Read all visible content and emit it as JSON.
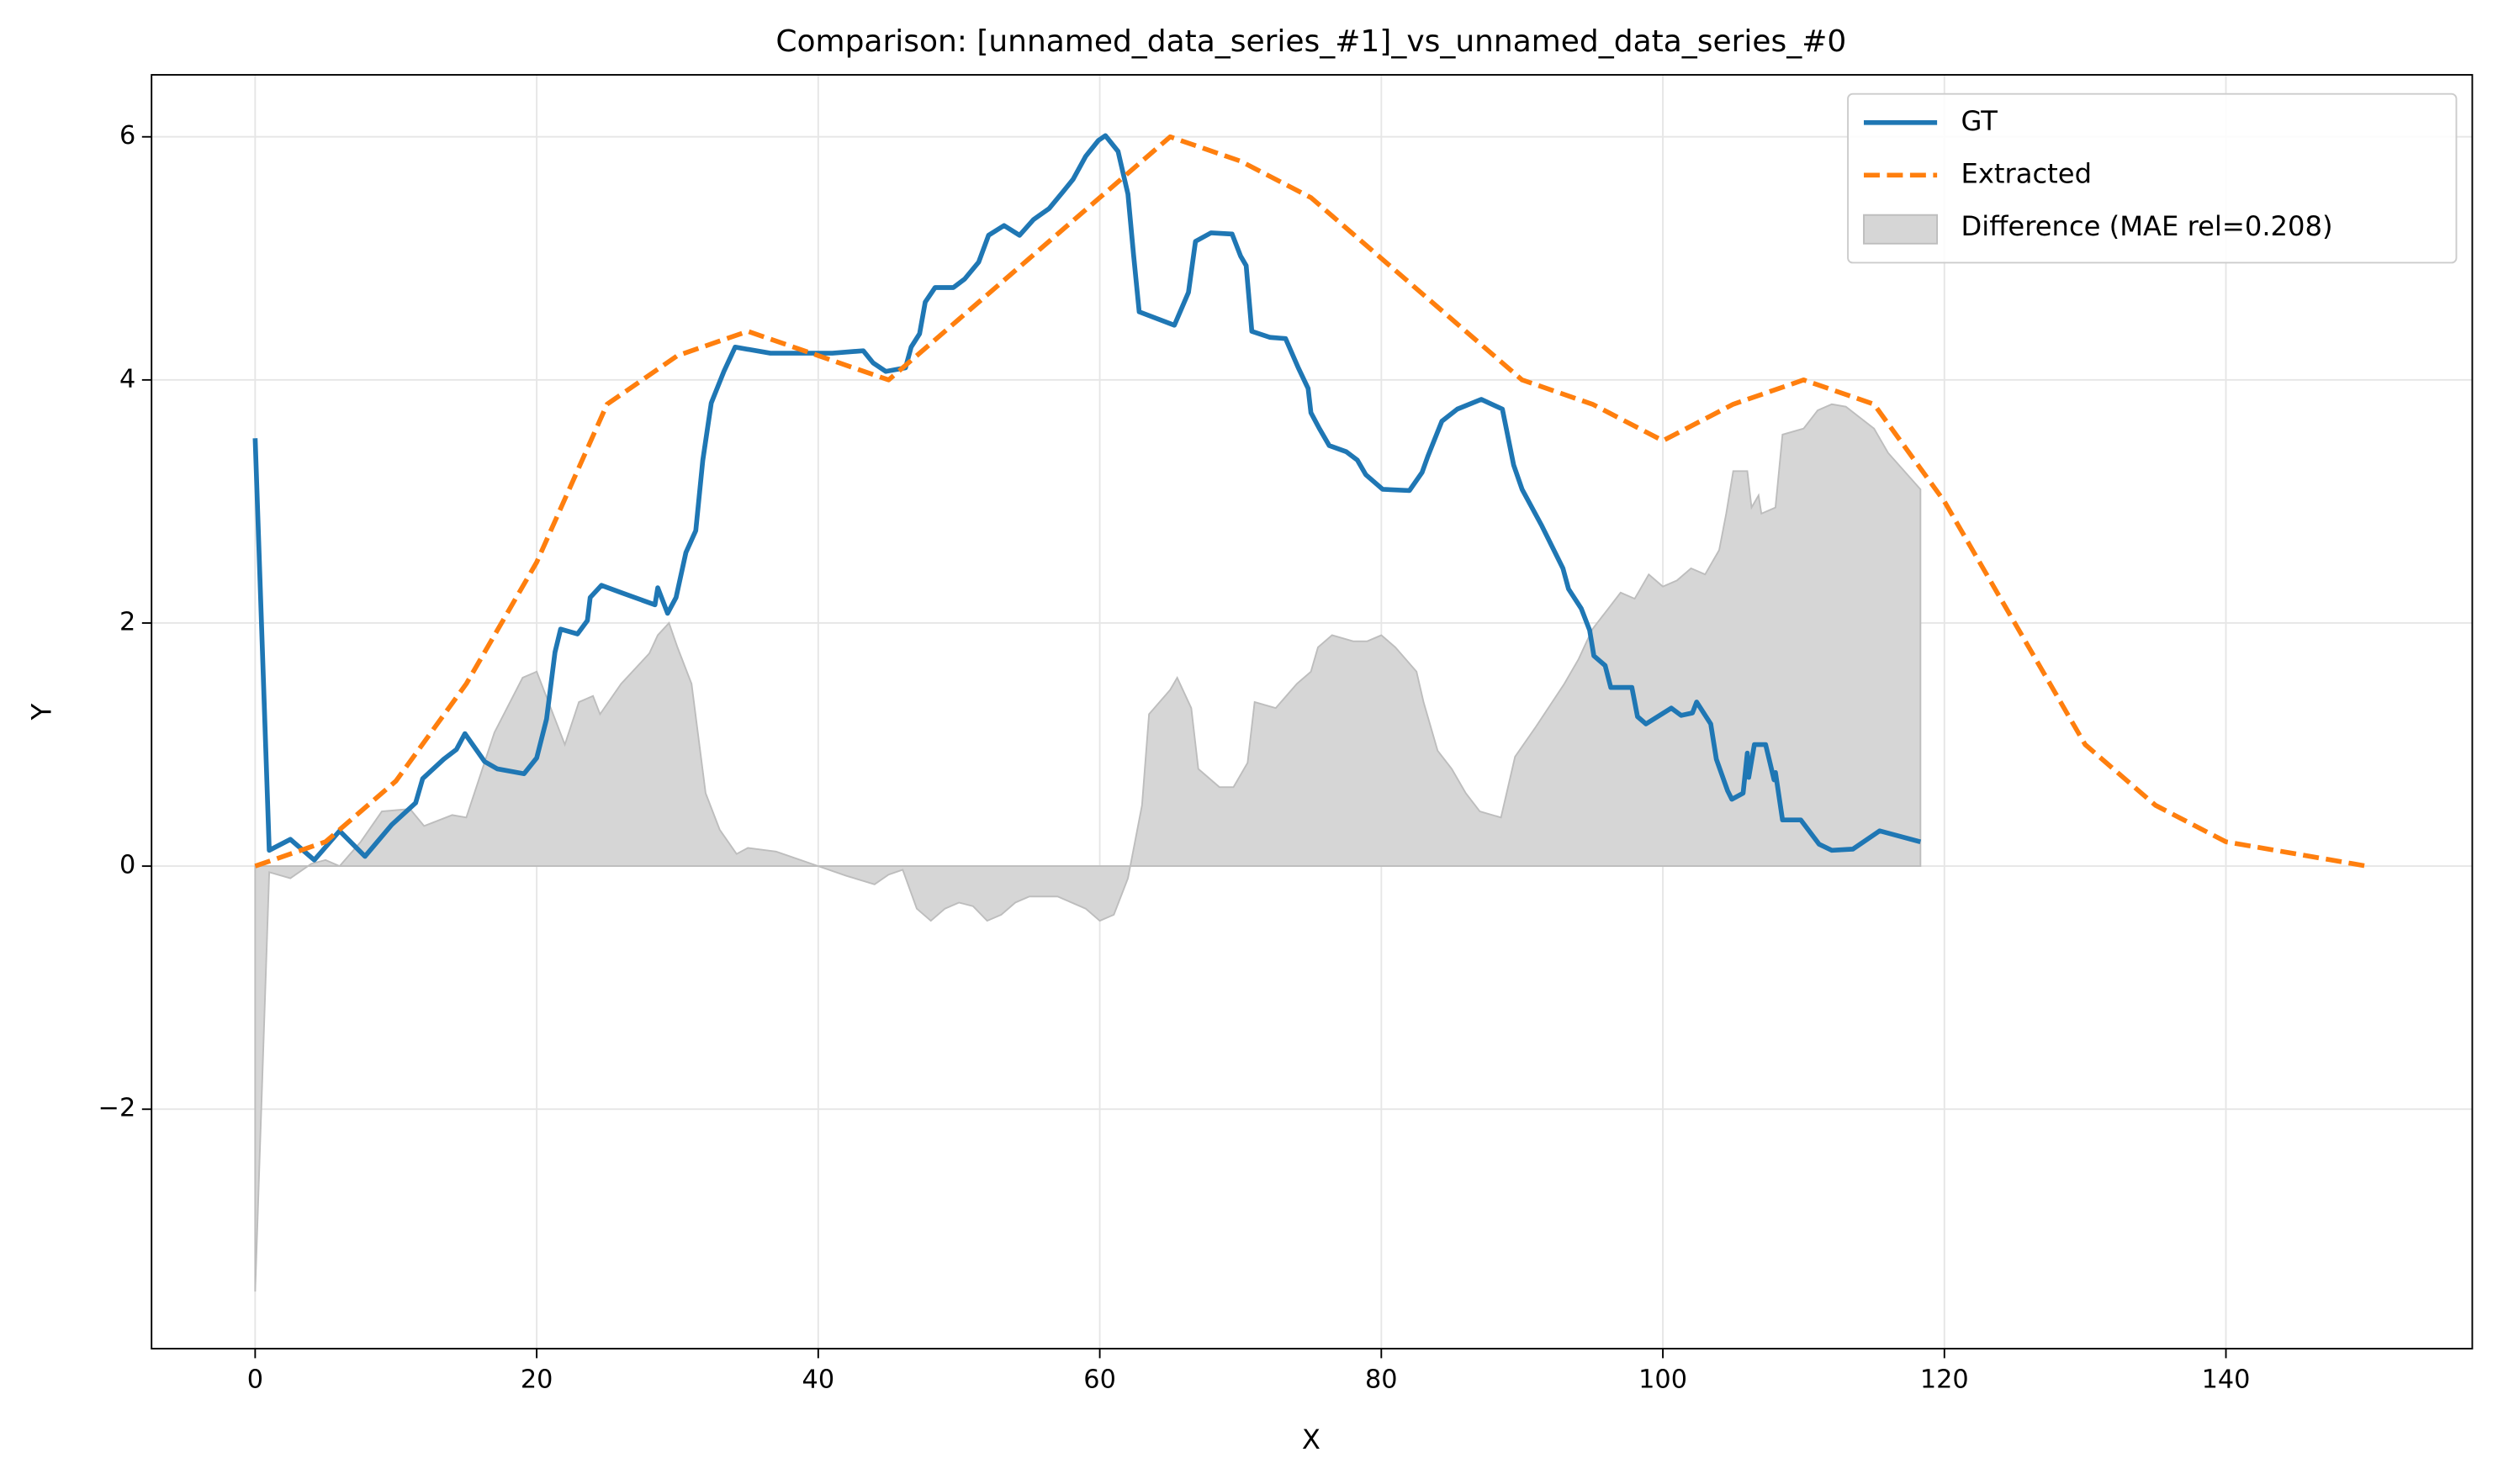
{
  "chart_data": {
    "type": "line",
    "title": "Comparison: [unnamed_data_series_#1]_vs_unnamed_data_series_#0",
    "xlabel": "X",
    "ylabel": "Y",
    "xlim": [
      -7.36,
      157.5
    ],
    "ylim": [
      -3.97,
      6.51
    ],
    "xticks": [
      0,
      20,
      40,
      60,
      80,
      100,
      120,
      140
    ],
    "yticks": [
      {
        "value": -2,
        "label": "−2"
      },
      0,
      2,
      4,
      6
    ],
    "grid": true,
    "legend": "upper right",
    "series": [
      {
        "name": "GT",
        "color": "#1f77b4",
        "linestyle": "solid",
        "x": [
          0,
          1,
          2.5,
          4.2,
          6,
          7.8,
          9.7,
          11.4,
          11.9,
          13.4,
          14.3,
          14.9,
          16.3,
          17.2,
          19.1,
          20,
          20.7,
          21.3,
          21.7,
          22.9,
          23.6,
          23.8,
          24.6,
          26,
          28.4,
          28.6,
          29.3,
          29.9,
          30.6,
          31.3,
          31.8,
          32.4,
          33.3,
          34.1,
          36.6,
          41,
          43.2,
          43.9,
          44.8,
          46.2,
          46.6,
          47.2,
          47.6,
          48.3,
          49.6,
          50.4,
          51.4,
          52.1,
          53.2,
          54.3,
          55.3,
          56.4,
          57.4,
          58.1,
          59,
          59.9,
          60.4,
          61.3,
          62,
          62.4,
          62.8,
          65.3,
          66.3,
          66.8,
          67.9,
          69.4,
          70,
          70.4,
          70.8,
          72.1,
          73.2,
          74.1,
          74.8,
          75,
          75.6,
          76.3,
          77.5,
          78.3,
          78.9,
          80.1,
          82,
          82.9,
          83.3,
          84.3,
          85.4,
          87.1,
          88.6,
          89.4,
          90,
          91.4,
          92.9,
          93.3,
          94.2,
          94.8,
          95.1,
          95.9,
          96.3,
          97.8,
          98.2,
          98.8,
          100.6,
          101.3,
          102.1,
          102.4,
          103.4,
          103.8,
          104.6,
          104.9,
          105.7,
          106,
          106.1,
          106.5,
          107.3,
          107.9,
          108,
          108.5,
          109.8,
          111.1,
          112,
          113.5,
          115.4,
          118.3
        ],
        "values": [
          3.52,
          0.13,
          0.22,
          0.05,
          0.29,
          0.08,
          0.34,
          0.52,
          0.72,
          0.88,
          0.96,
          1.09,
          0.86,
          0.8,
          0.76,
          0.89,
          1.21,
          1.76,
          1.95,
          1.91,
          2.02,
          2.21,
          2.31,
          2.25,
          2.15,
          2.29,
          2.08,
          2.21,
          2.58,
          2.76,
          3.34,
          3.81,
          4.07,
          4.27,
          4.22,
          4.22,
          4.24,
          4.14,
          4.07,
          4.1,
          4.27,
          4.38,
          4.64,
          4.76,
          4.76,
          4.83,
          4.97,
          5.19,
          5.27,
          5.19,
          5.32,
          5.41,
          5.55,
          5.65,
          5.84,
          5.97,
          6.01,
          5.88,
          5.53,
          5.03,
          4.56,
          4.45,
          4.72,
          5.14,
          5.21,
          5.2,
          5.02,
          4.94,
          4.4,
          4.35,
          4.34,
          4.1,
          3.93,
          3.73,
          3.6,
          3.46,
          3.41,
          3.34,
          3.22,
          3.1,
          3.09,
          3.24,
          3.37,
          3.66,
          3.76,
          3.84,
          3.76,
          3.3,
          3.1,
          2.8,
          2.45,
          2.28,
          2.12,
          1.94,
          1.73,
          1.65,
          1.47,
          1.47,
          1.23,
          1.17,
          1.3,
          1.24,
          1.26,
          1.35,
          1.17,
          0.88,
          0.62,
          0.55,
          0.6,
          0.93,
          0.73,
          1.0,
          1.0,
          0.71,
          0.77,
          0.38,
          0.38,
          0.18,
          0.13,
          0.14,
          0.29,
          0.2
        ]
      },
      {
        "name": "Extracted",
        "color": "#ff7f0e",
        "linestyle": "dashed",
        "x": [
          0,
          5,
          10,
          15,
          20,
          25,
          30,
          35,
          40,
          45,
          50,
          55,
          60,
          65,
          70,
          75,
          80,
          85,
          90,
          95,
          100,
          105,
          110,
          115,
          120,
          125,
          130,
          135,
          140,
          145,
          150
        ],
        "values": [
          0,
          0.2,
          0.7,
          1.5,
          2.5,
          3.8,
          4.2,
          4.4,
          4.2,
          4.0,
          4.5,
          5.0,
          5.5,
          6.0,
          5.8,
          5.5,
          5.0,
          4.5,
          4.0,
          3.8,
          3.5,
          3.8,
          4.0,
          3.8,
          3.0,
          2.0,
          1.0,
          0.5,
          0.2,
          0.1,
          0
        ]
      },
      {
        "name": "Difference (MAE rel=0.208)",
        "color": "#d6d6d6",
        "linestyle": "area",
        "x": [
          0,
          1,
          2.5,
          4,
          5,
          6,
          7.5,
          9,
          11,
          12,
          14,
          15,
          17,
          19,
          20,
          21,
          22,
          23,
          24,
          24.5,
          26,
          28,
          28.6,
          29.4,
          30,
          31,
          32,
          33,
          34.2,
          35,
          37,
          40,
          42,
          44,
          45,
          46,
          47,
          48,
          49,
          50,
          51,
          52,
          53,
          54,
          55,
          57,
          59,
          60,
          61,
          62,
          63,
          63.5,
          65,
          65.5,
          66.5,
          67,
          68.5,
          69.5,
          70.5,
          71,
          72.5,
          74,
          75,
          75.5,
          76.5,
          78,
          79,
          80,
          81,
          82.5,
          83,
          84,
          85,
          86,
          87,
          88.5,
          89.5,
          91,
          93,
          94,
          95,
          96,
          97,
          98,
          99,
          100,
          101,
          102,
          103,
          104,
          104.5,
          105,
          106,
          106.3,
          106.8,
          107,
          108,
          108.5,
          110,
          111,
          112,
          113,
          115,
          116,
          118.3
        ],
        "values": [
          -3.5,
          -0.05,
          -0.1,
          0.02,
          0.05,
          0.0,
          0.2,
          0.45,
          0.47,
          0.33,
          0.42,
          0.4,
          1.1,
          1.55,
          1.6,
          1.3,
          1.0,
          1.35,
          1.4,
          1.25,
          1.5,
          1.75,
          1.9,
          2.0,
          1.8,
          1.5,
          0.6,
          0.3,
          0.1,
          0.15,
          0.12,
          0.0,
          -0.08,
          -0.15,
          -0.07,
          -0.03,
          -0.35,
          -0.45,
          -0.35,
          -0.3,
          -0.33,
          -0.45,
          -0.4,
          -0.3,
          -0.25,
          -0.25,
          -0.35,
          -0.45,
          -0.4,
          -0.1,
          0.5,
          1.25,
          1.45,
          1.55,
          1.3,
          0.8,
          0.65,
          0.65,
          0.85,
          1.35,
          1.3,
          1.5,
          1.6,
          1.8,
          1.9,
          1.85,
          1.85,
          1.9,
          1.8,
          1.6,
          1.35,
          0.95,
          0.8,
          0.6,
          0.45,
          0.4,
          0.9,
          1.15,
          1.5,
          1.7,
          1.95,
          2.1,
          2.25,
          2.2,
          2.4,
          2.3,
          2.35,
          2.45,
          2.4,
          2.6,
          2.9,
          3.25,
          3.25,
          2.95,
          3.05,
          2.9,
          2.95,
          3.55,
          3.6,
          3.75,
          3.8,
          3.78,
          3.6,
          3.4,
          3.1
        ]
      }
    ]
  }
}
